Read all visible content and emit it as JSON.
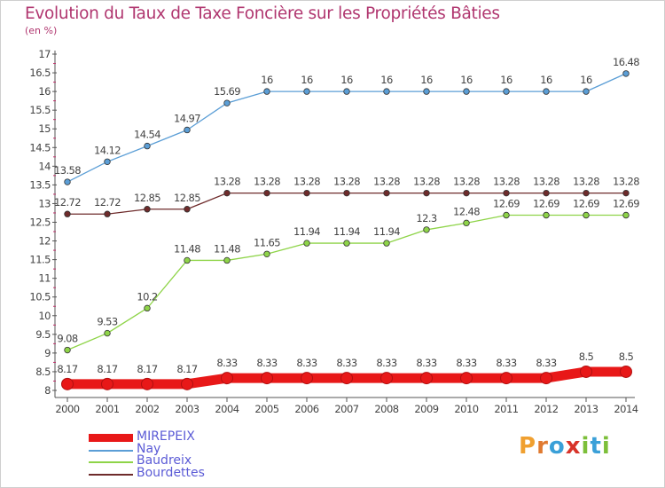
{
  "header": {
    "title": "Evolution du Taux de Taxe Foncière sur les Propriétés Bâties",
    "unit": "(en %)"
  },
  "colors": {
    "title": "#b0366f",
    "axis": "#555555",
    "tick_mark": "#c0306a",
    "label": "#444444",
    "legend_text": "#5b5bd6"
  },
  "brand": {
    "letters": [
      "P",
      "r",
      "o",
      "x",
      "i",
      "t",
      "i"
    ],
    "letter_colors": [
      "#f0a030",
      "#e07a30",
      "#3aa0d8",
      "#d8342a",
      "#7cbf3a",
      "#3aa0d8",
      "#7cbf3a"
    ]
  },
  "chart_data": {
    "type": "line",
    "title": "Evolution du Taux de Taxe Foncière sur les Propriétés Bâties",
    "ylabel": "(en %)",
    "xlabel": "",
    "x": [
      "2000",
      "2001",
      "2002",
      "2003",
      "2004",
      "2005",
      "2006",
      "2007",
      "2008",
      "2009",
      "2010",
      "2011",
      "2012",
      "2013",
      "2014"
    ],
    "ylim": [
      8,
      17
    ],
    "yticks": [
      "8",
      "8.5",
      "9",
      "9.5",
      "10",
      "10.5",
      "11",
      "11.5",
      "12",
      "12.5",
      "13",
      "13.5",
      "14",
      "14.5",
      "15",
      "15.5",
      "16",
      "16.5",
      "17"
    ],
    "grid": false,
    "legend_position": "bottom-left",
    "series": [
      {
        "name": "MIREPEIX",
        "color": "#e81818",
        "emphasis": true,
        "values": [
          8.17,
          8.17,
          8.17,
          8.17,
          8.33,
          8.33,
          8.33,
          8.33,
          8.33,
          8.33,
          8.33,
          8.33,
          8.33,
          8.5,
          8.5
        ],
        "labels": [
          "8.17",
          "8.17",
          "8.17",
          "8.17",
          "8.33",
          "8.33",
          "8.33",
          "8.33",
          "8.33",
          "8.33",
          "8.33",
          "8.33",
          "8.33",
          "8.5",
          "8.5"
        ]
      },
      {
        "name": "Nay",
        "color": "#5b9ed6",
        "emphasis": false,
        "values": [
          13.58,
          14.12,
          14.54,
          14.97,
          15.69,
          16,
          16,
          16,
          16,
          16,
          16,
          16,
          16,
          16,
          16.48
        ],
        "labels": [
          "13.58",
          "14.12",
          "14.54",
          "14.97",
          "15.69",
          "16",
          "16",
          "16",
          "16",
          "16",
          "16",
          "16",
          "16",
          "16",
          "16.48"
        ]
      },
      {
        "name": "Baudreix",
        "color": "#8ed448",
        "emphasis": false,
        "values": [
          9.08,
          9.53,
          10.2,
          11.48,
          11.48,
          11.65,
          11.94,
          11.94,
          11.94,
          12.3,
          12.48,
          12.69,
          12.69,
          12.69,
          12.69
        ],
        "labels": [
          "9.08",
          "9.53",
          "10.2",
          "11.48",
          "11.48",
          "11.65",
          "11.94",
          "11.94",
          "11.94",
          "12.3",
          "12.48",
          "12.69",
          "12.69",
          "12.69",
          "12.69"
        ]
      },
      {
        "name": "Bourdettes",
        "color": "#6e2b2b",
        "emphasis": false,
        "values": [
          12.72,
          12.72,
          12.85,
          12.85,
          13.28,
          13.28,
          13.28,
          13.28,
          13.28,
          13.28,
          13.28,
          13.28,
          13.28,
          13.28,
          13.28
        ],
        "labels": [
          "12.72",
          "12.72",
          "12.85",
          "12.85",
          "13.28",
          "13.28",
          "13.28",
          "13.28",
          "13.28",
          "13.28",
          "13.28",
          "13.28",
          "13.28",
          "13.28",
          "13.28"
        ]
      }
    ]
  }
}
